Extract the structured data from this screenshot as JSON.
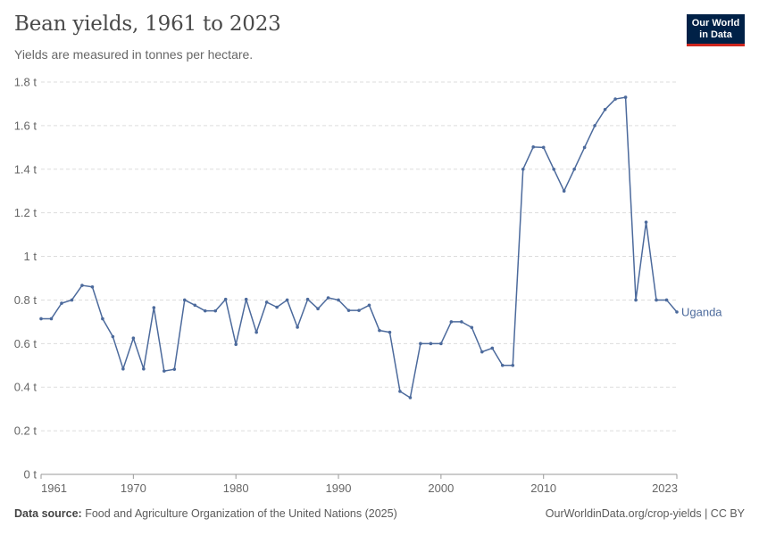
{
  "header": {
    "title": "Bean yields, 1961 to 2023",
    "subtitle": "Yields are measured in tonnes per hectare."
  },
  "logo": {
    "line1": "Our World",
    "line2": "in Data"
  },
  "footer": {
    "source_label": "Data source:",
    "source_text": "Food and Agriculture Organization of the United Nations (2025)",
    "credit": "OurWorldinData.org/crop-yields | CC BY"
  },
  "colors": {
    "series": "#4c6a9c",
    "grid": "#dddddd",
    "axis": "#666666",
    "logo_bg": "#002147",
    "logo_accent": "#ce261e"
  },
  "chart_data": {
    "type": "line",
    "title": "Bean yields, 1961 to 2023",
    "subtitle": "Yields are measured in tonnes per hectare.",
    "xlim": [
      1961,
      2023
    ],
    "ylim": [
      0,
      1.8
    ],
    "grid": true,
    "x_ticks": [
      {
        "value": 1961,
        "label": "1961"
      },
      {
        "value": 1970,
        "label": "1970"
      },
      {
        "value": 1980,
        "label": "1980"
      },
      {
        "value": 1990,
        "label": "1990"
      },
      {
        "value": 2000,
        "label": "2000"
      },
      {
        "value": 2010,
        "label": "2010"
      },
      {
        "value": 2023,
        "label": "2023"
      }
    ],
    "y_ticks": [
      {
        "value": 0,
        "label": "0 t"
      },
      {
        "value": 0.2,
        "label": "0.2 t"
      },
      {
        "value": 0.4,
        "label": "0.4 t"
      },
      {
        "value": 0.6,
        "label": "0.6 t"
      },
      {
        "value": 0.8,
        "label": "0.8 t"
      },
      {
        "value": 1.0,
        "label": "1 t"
      },
      {
        "value": 1.2,
        "label": "1.2 t"
      },
      {
        "value": 1.4,
        "label": "1.4 t"
      },
      {
        "value": 1.6,
        "label": "1.6 t"
      },
      {
        "value": 1.8,
        "label": "1.8 t"
      }
    ],
    "series": [
      {
        "name": "Uganda",
        "x": [
          1961,
          1962,
          1963,
          1964,
          1965,
          1966,
          1967,
          1968,
          1969,
          1970,
          1971,
          1972,
          1973,
          1974,
          1975,
          1976,
          1977,
          1978,
          1979,
          1980,
          1981,
          1982,
          1983,
          1984,
          1985,
          1986,
          1987,
          1988,
          1989,
          1990,
          1991,
          1992,
          1993,
          1994,
          1995,
          1996,
          1997,
          1998,
          1999,
          2000,
          2001,
          2002,
          2003,
          2004,
          2005,
          2006,
          2007,
          2008,
          2009,
          2010,
          2011,
          2012,
          2013,
          2014,
          2015,
          2016,
          2017,
          2018,
          2019,
          2020,
          2021,
          2022,
          2023
        ],
        "y": [
          0.714,
          0.714,
          0.785,
          0.8,
          0.867,
          0.86,
          0.714,
          0.632,
          0.484,
          0.625,
          0.484,
          0.765,
          0.474,
          0.482,
          0.8,
          0.776,
          0.75,
          0.75,
          0.803,
          0.596,
          0.803,
          0.652,
          0.79,
          0.767,
          0.8,
          0.675,
          0.803,
          0.76,
          0.81,
          0.8,
          0.752,
          0.752,
          0.776,
          0.66,
          0.652,
          0.381,
          0.352,
          0.6,
          0.6,
          0.6,
          0.7,
          0.7,
          0.674,
          0.562,
          0.579,
          0.5,
          0.5,
          1.4,
          1.502,
          1.5,
          1.4,
          1.3,
          1.4,
          1.5,
          1.6,
          1.674,
          1.722,
          1.73,
          0.8,
          1.157,
          0.8,
          0.8,
          0.745
        ]
      }
    ]
  }
}
